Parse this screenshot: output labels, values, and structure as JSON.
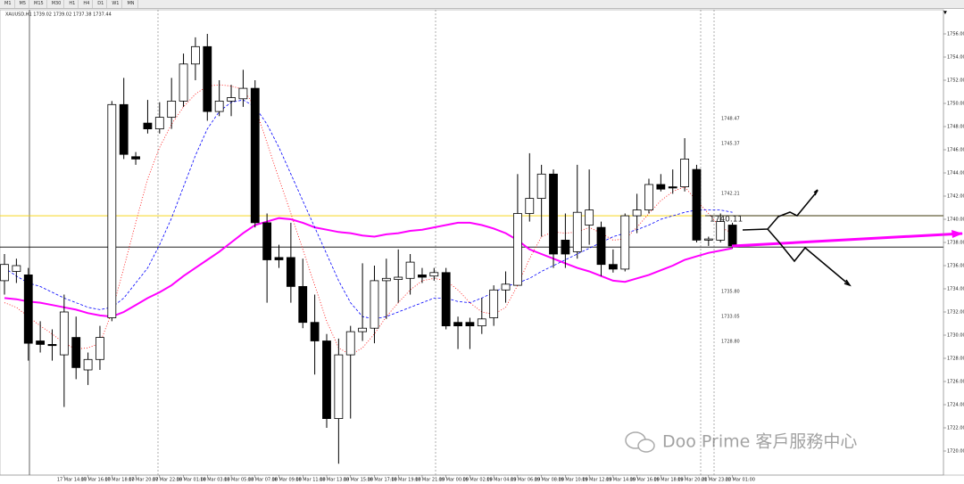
{
  "chart_data": {
    "type": "candlestick",
    "title": "XAUUSD,H1  1739.02 1739.02 1737.38 1737.44",
    "toolbar": [
      "M1",
      "M5",
      "M15",
      "M30",
      "H1",
      "H4",
      "D1",
      "W1",
      "MN"
    ],
    "watermark": "Doo Prime 客戶服務中心",
    "annotations": [
      "1748.47",
      "1745.37",
      "1742.21",
      "1740.11",
      "1735.80",
      "1733.05",
      "1728.80"
    ],
    "categories": [
      null,
      null,
      null,
      null,
      null,
      "17 Mar 14:00",
      null,
      "17 Mar 16:00",
      null,
      "17 Mar 18:00",
      null,
      "17 Mar 20:00",
      null,
      "17 Mar 22:00",
      null,
      "18 Mar 01:00",
      null,
      "18 Mar 03:00",
      null,
      "18 Mar 05:00",
      null,
      "18 Mar 07:00",
      null,
      "18 Mar 09:00",
      null,
      "18 Mar 11:00",
      null,
      "18 Mar 13:00",
      null,
      "18 Mar 15:00",
      null,
      "18 Mar 17:00",
      null,
      "18 Mar 19:00",
      null,
      "18 Mar 21:00",
      null,
      "19 Mar 00:00",
      null,
      "19 Mar 02:00",
      null,
      "19 Mar 04:00",
      null,
      "19 Mar 06:00",
      null,
      "19 Mar 08:00",
      null,
      "19 Mar 10:00",
      null,
      "19 Mar 12:00",
      null,
      "19 Mar 14:00",
      null,
      "19 Mar 16:00",
      null,
      "19 Mar 18:00",
      null,
      "19 Mar 20:00",
      null,
      "21 Mar 23:00",
      null,
      "22 Mar 01:00"
    ],
    "open": [
      1734.7,
      1735.5,
      1735.2,
      1729.5,
      1729.2,
      1728.3,
      1729.8,
      1727.0,
      1727.9,
      1731.5,
      1749.9,
      1745.4,
      1748.3,
      1747.8,
      1748.8,
      1750.2,
      1753.4,
      1754.9,
      1749.3,
      1750.2,
      1750.4,
      1751.3,
      1739.7,
      1736.7,
      1736.7,
      1734.2,
      1731.1,
      1729.5,
      1722.8,
      1728.3,
      1730.3,
      1730.6,
      1734.7,
      1734.8,
      1734.9,
      1735.2,
      1735.1,
      1735.4,
      1731.1,
      1731.1,
      1730.8,
      1731.5,
      1733.9,
      1734.3,
      1740.5,
      1741.8,
      1743.9,
      1738.2,
      1737.2,
      1739.5,
      1739.3,
      1736.1,
      1735.7,
      1740.3,
      1740.8,
      1743.0,
      1742.8,
      1742.8,
      1744.3,
      1738.2,
      1738.2,
      1739.5
    ],
    "high": [
      1737.0,
      1736.6,
      1735.8,
      1731.2,
      1730.5,
      1733.5,
      1731.6,
      1728.5,
      1730.8,
      1750.2,
      1752.2,
      1745.8,
      1750.3,
      1750.1,
      1752.2,
      1754.3,
      1755.7,
      1756.0,
      1752.0,
      1751.6,
      1752.9,
      1752.0,
      1740.5,
      1737.8,
      1739.7,
      1736.6,
      1733.5,
      1730.1,
      1729.7,
      1730.8,
      1736.2,
      1736.0,
      1736.6,
      1737.4,
      1737.0,
      1735.8,
      1735.8,
      1735.8,
      1731.6,
      1731.5,
      1733.2,
      1734.3,
      1735.5,
      1743.9,
      1745.7,
      1744.7,
      1744.3,
      1740.5,
      1744.7,
      1744.3,
      1739.8,
      1737.4,
      1740.5,
      1742.2,
      1743.5,
      1743.9,
      1744.3,
      1747.0,
      1744.7,
      1738.5,
      1740.5,
      1739.7
    ],
    "low": [
      1733.5,
      1734.5,
      1727.8,
      1728.5,
      1727.8,
      1723.8,
      1726.2,
      1725.7,
      1727.0,
      1731.2,
      1745.2,
      1744.7,
      1747.4,
      1747.4,
      1747.8,
      1749.7,
      1752.0,
      1748.5,
      1748.9,
      1748.9,
      1749.7,
      1739.3,
      1732.8,
      1735.8,
      1732.8,
      1730.6,
      1726.6,
      1722.0,
      1718.9,
      1722.8,
      1729.5,
      1729.3,
      1731.4,
      1732.8,
      1733.5,
      1734.5,
      1734.7,
      1730.5,
      1728.8,
      1728.8,
      1730.1,
      1730.8,
      1732.8,
      1734.3,
      1739.8,
      1738.5,
      1735.8,
      1735.8,
      1736.6,
      1737.8,
      1735.1,
      1735.4,
      1735.5,
      1738.8,
      1740.5,
      1742.4,
      1742.2,
      1742.4,
      1738.0,
      1737.7,
      1738.0,
      1737.5
    ],
    "close": [
      1736.1,
      1736.0,
      1729.3,
      1729.2,
      1729.1,
      1732.0,
      1727.2,
      1727.9,
      1729.8,
      1749.9,
      1745.6,
      1745.2,
      1747.8,
      1748.8,
      1750.2,
      1753.4,
      1754.9,
      1749.3,
      1750.2,
      1750.5,
      1751.3,
      1739.7,
      1736.5,
      1736.5,
      1734.2,
      1731.1,
      1729.5,
      1722.8,
      1728.3,
      1730.3,
      1730.6,
      1734.7,
      1734.9,
      1735.0,
      1736.3,
      1735.0,
      1735.4,
      1730.8,
      1730.8,
      1730.8,
      1731.4,
      1733.9,
      1734.4,
      1740.5,
      1741.8,
      1743.9,
      1737.0,
      1737.0,
      1740.6,
      1740.8,
      1736.1,
      1735.7,
      1740.3,
      1740.8,
      1743.0,
      1742.6,
      1742.7,
      1745.2,
      1738.2,
      1738.3,
      1739.8,
      1737.7
    ],
    "up_color": "#ffffff",
    "down_color": "#000000",
    "outline_color": "#000000",
    "lines": [
      {
        "color": "#ff00ff",
        "style": "solid",
        "values": [
          1733.2,
          1733.1,
          1732.9,
          1732.8,
          1732.6,
          1732.4,
          1732.2,
          1731.9,
          1731.7,
          1731.6,
          1732.0,
          1732.6,
          1733.2,
          1733.7,
          1734.3,
          1735.1,
          1735.8,
          1736.5,
          1737.2,
          1738.0,
          1738.8,
          1739.5,
          1739.8,
          1740.1,
          1740.0,
          1739.7,
          1739.3,
          1739.1,
          1738.9,
          1738.8,
          1738.6,
          1738.5,
          1738.7,
          1738.8,
          1739.0,
          1739.1,
          1739.3,
          1739.5,
          1739.7,
          1739.7,
          1739.5,
          1739.2,
          1738.8,
          1738.2,
          1737.4,
          1737.0,
          1736.6,
          1736.2,
          1735.8,
          1735.5,
          1735.1,
          1734.7,
          1734.6,
          1734.9,
          1735.2,
          1735.6,
          1736.0,
          1736.5,
          1736.8,
          1737.1,
          1737.3,
          1737.5
        ]
      },
      {
        "color": "#ff0000",
        "style": "dotted",
        "values": [
          1732.8,
          1732.4,
          1731.6,
          1730.8,
          1730.1,
          1729.3,
          1728.8,
          1728.9,
          1729.3,
          1732.0,
          1735.8,
          1739.7,
          1743.5,
          1746.2,
          1748.2,
          1749.7,
          1750.8,
          1751.5,
          1751.6,
          1751.5,
          1751.2,
          1749.7,
          1746.6,
          1743.5,
          1740.5,
          1737.4,
          1734.3,
          1731.2,
          1728.9,
          1728.3,
          1728.9,
          1730.1,
          1731.6,
          1732.8,
          1733.9,
          1734.7,
          1734.9,
          1734.7,
          1733.9,
          1732.8,
          1732.0,
          1731.8,
          1732.4,
          1734.3,
          1736.6,
          1738.5,
          1738.9,
          1738.8,
          1738.9,
          1739.3,
          1738.8,
          1738.2,
          1738.3,
          1739.3,
          1740.5,
          1741.6,
          1742.4,
          1742.8,
          1741.6,
          1740.5,
          1739.3,
          1738.8
        ]
      },
      {
        "color": "#0000ff",
        "style": "dashed",
        "values": [
          1735.8,
          1735.1,
          1734.5,
          1734.2,
          1733.7,
          1733.2,
          1732.8,
          1732.4,
          1732.2,
          1732.4,
          1733.2,
          1734.5,
          1735.8,
          1737.8,
          1740.1,
          1742.8,
          1745.5,
          1747.8,
          1749.3,
          1750.1,
          1750.3,
          1749.7,
          1748.2,
          1746.2,
          1743.9,
          1741.6,
          1739.3,
          1737.0,
          1734.7,
          1732.8,
          1731.6,
          1731.4,
          1731.6,
          1732.0,
          1732.4,
          1732.8,
          1733.2,
          1733.2,
          1732.9,
          1732.8,
          1733.2,
          1733.7,
          1734.2,
          1734.5,
          1734.9,
          1735.5,
          1736.0,
          1736.5,
          1737.0,
          1737.5,
          1738.0,
          1738.5,
          1738.8,
          1739.1,
          1739.5,
          1740.0,
          1740.3,
          1740.6,
          1740.8,
          1740.8,
          1740.8,
          1740.6
        ]
      }
    ],
    "hlines": [
      {
        "value": 1740.3,
        "color": "#f5d000"
      },
      {
        "value": 1737.6,
        "color": "#000000"
      }
    ],
    "ylim": [
      1718,
      1758
    ],
    "yticks": [
      {
        "value": 1720,
        "label": "1720.00"
      },
      {
        "value": 1722,
        "label": "1722.00"
      },
      {
        "value": 1724,
        "label": "1724.00"
      },
      {
        "value": 1726,
        "label": "1726.00"
      },
      {
        "value": 1728,
        "label": "1728.00"
      },
      {
        "value": 1730,
        "label": "1730.00"
      },
      {
        "value": 1732,
        "label": "1732.00"
      },
      {
        "value": 1734,
        "label": "1734.00"
      },
      {
        "value": 1736,
        "label": "1736.00"
      },
      {
        "value": 1738,
        "label": "1738.00"
      },
      {
        "value": 1740,
        "label": "1740.00"
      },
      {
        "value": 1742,
        "label": "1742.00"
      },
      {
        "value": 1744,
        "label": "1744.00"
      },
      {
        "value": 1746,
        "label": "1746.00"
      },
      {
        "value": 1748,
        "label": "1748.00"
      },
      {
        "value": 1750,
        "label": "1750.00"
      },
      {
        "value": 1752,
        "label": "1752.00"
      },
      {
        "value": 1754,
        "label": "1754.00"
      },
      {
        "value": 1756,
        "label": "1756.00"
      }
    ],
    "grid": false
  }
}
